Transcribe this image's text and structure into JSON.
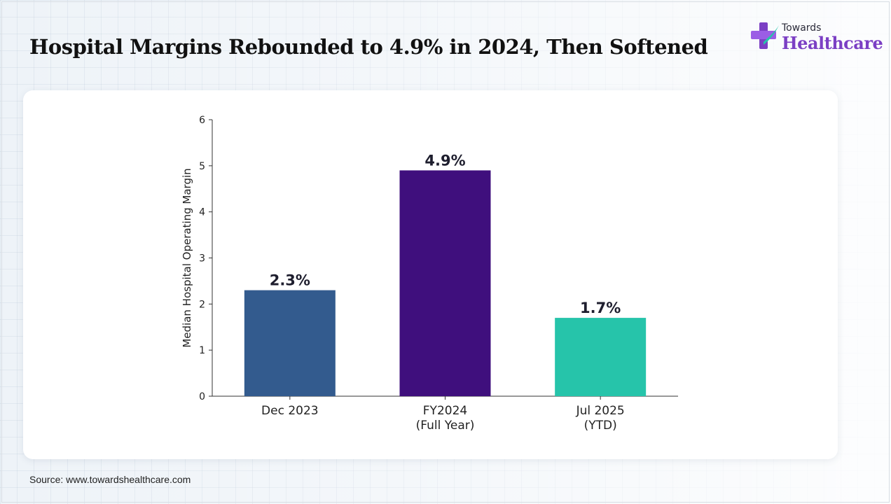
{
  "header": {
    "title": "Hospital Margins Rebounded to 4.9% in 2024, Then Softened"
  },
  "brand": {
    "line1": "Towards",
    "line2": "Healthcare"
  },
  "footer": {
    "source": "Source: www.towardshealthcare.com"
  },
  "chart_data": {
    "type": "bar",
    "title": "",
    "xlabel": "",
    "ylabel": "Median Hospital Operating Margin",
    "ylim": [
      0,
      6
    ],
    "yticks": [
      "0",
      "1",
      "2",
      "3",
      "4",
      "5",
      "6"
    ],
    "categories": [
      [
        "Dec 2023"
      ],
      [
        "FY2024",
        "(Full Year)"
      ],
      [
        "Jul 2025",
        "(YTD)"
      ]
    ],
    "values": [
      2.3,
      4.9,
      1.7
    ],
    "value_labels": [
      "2.3%",
      "4.9%",
      "1.7%"
    ],
    "colors": [
      "#335b8e",
      "#3f0f7d",
      "#26c4aa"
    ],
    "grid": false,
    "legend": "none"
  }
}
